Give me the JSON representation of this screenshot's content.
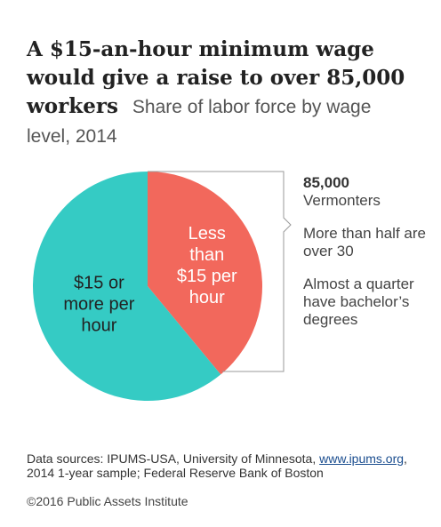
{
  "title": {
    "main": "A $15-an-hour minimum wage would give a raise to over 85,000 workers",
    "subtitle": "Share of labor force by wage level, 2014"
  },
  "chart_data": {
    "type": "pie",
    "slices": [
      {
        "label_lines": [
          "Less",
          "than",
          "$15 per",
          "hour"
        ],
        "value": 39,
        "color": "#f2685c"
      },
      {
        "label_lines": [
          "$15 or",
          "more per",
          "hour"
        ],
        "value": 61,
        "color": "#35cbc4"
      }
    ]
  },
  "annotation": {
    "count": "85,000",
    "count_label": "Vermonters",
    "fact1": "More than half are over 30",
    "fact2": "Almost a quarter have bachelor’s degrees"
  },
  "footer": {
    "sources_prefix": "Data sources: IPUMS-USA, University of Minnesota,",
    "sources_link": "www.ipums.org",
    "sources_suffix": ", 2014 1-year sample; Federal Reserve Bank of Boston",
    "copyright": "©2016 Public Assets Institute"
  }
}
